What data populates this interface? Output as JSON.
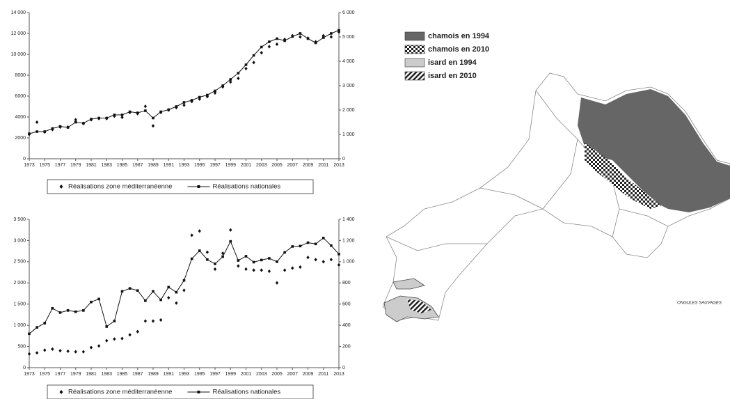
{
  "chart_data": [
    {
      "type": "dual-axis-line",
      "x": [
        1973,
        1974,
        1975,
        1976,
        1977,
        1978,
        1979,
        1980,
        1981,
        1982,
        1983,
        1984,
        1985,
        1986,
        1987,
        1988,
        1989,
        1990,
        1991,
        1992,
        1993,
        1994,
        1995,
        1996,
        1997,
        1998,
        1999,
        2000,
        2001,
        2002,
        2003,
        2004,
        2005,
        2006,
        2007,
        2008,
        2009,
        2010,
        2011,
        2012,
        2013
      ],
      "xlim": [
        1973,
        2013
      ],
      "xticks": [
        1973,
        1975,
        1977,
        1979,
        1981,
        1983,
        1985,
        1987,
        1989,
        1991,
        1993,
        1995,
        1997,
        1999,
        2001,
        2003,
        2005,
        2007,
        2009,
        2011,
        2013
      ],
      "ylim": [
        0,
        14000
      ],
      "yticks": [
        0,
        2000,
        4000,
        6000,
        8000,
        {
          "value": 10000,
          "label": "10 000"
        },
        {
          "value": 12000,
          "label": "12 000"
        },
        {
          "value": 14000,
          "label": "14 000"
        }
      ],
      "y2lim": [
        0,
        6000
      ],
      "y2ticks": [
        0,
        {
          "value": 1000,
          "label": "1 000"
        },
        {
          "value": 2000,
          "label": "2 000"
        },
        {
          "value": 3000,
          "label": "3 000"
        },
        {
          "value": 4000,
          "label": "4 000"
        },
        {
          "value": 5000,
          "label": "5 000"
        },
        {
          "value": 6000,
          "label": "6 000"
        }
      ],
      "series": [
        {
          "name": "Réalisations zone méditerranéenne",
          "color": "#111",
          "marker": "diamond",
          "line": false,
          "axis": "y2",
          "values": [
            1000,
            1500,
            1100,
            1200,
            1300,
            1300,
            1600,
            1450,
            1600,
            1650,
            1650,
            1750,
            1700,
            1900,
            1850,
            2150,
            1350,
            1900,
            2000,
            2100,
            2200,
            2350,
            2450,
            2550,
            2700,
            2950,
            3150,
            3300,
            3700,
            3950,
            4350,
            4600,
            4700,
            4900,
            5050,
            5000,
            4950,
            4800,
            5050,
            5000,
            5200
          ]
        },
        {
          "name": "Réalisations nationales",
          "color": "#111",
          "marker": "square",
          "line": true,
          "axis": "y",
          "values": [
            2400,
            2600,
            2600,
            2900,
            3100,
            3000,
            3500,
            3400,
            3800,
            3900,
            3900,
            4200,
            4200,
            4500,
            4400,
            4600,
            3900,
            4500,
            4700,
            5000,
            5400,
            5600,
            5900,
            6100,
            6500,
            7000,
            7600,
            8200,
            9000,
            9900,
            10700,
            11200,
            11500,
            11300,
            11700,
            12000,
            11500,
            11100,
            11600,
            12000,
            12300
          ]
        }
      ]
    },
    {
      "type": "dual-axis-line",
      "x": [
        1973,
        1974,
        1975,
        1976,
        1977,
        1978,
        1979,
        1980,
        1981,
        1982,
        1983,
        1984,
        1985,
        1986,
        1987,
        1988,
        1989,
        1990,
        1991,
        1992,
        1993,
        1994,
        1995,
        1996,
        1997,
        1998,
        1999,
        2000,
        2001,
        2002,
        2003,
        2004,
        2005,
        2006,
        2007,
        2008,
        2009,
        2010,
        2011,
        2012,
        2013
      ],
      "xlim": [
        1973,
        2013
      ],
      "xticks": [
        1973,
        1975,
        1977,
        1979,
        1981,
        1983,
        1985,
        1987,
        1989,
        1991,
        1993,
        1995,
        1997,
        1999,
        2001,
        2003,
        2005,
        2007,
        2009,
        2011,
        2013
      ],
      "ylim": [
        0,
        3500
      ],
      "yticks": [
        0,
        500,
        {
          "value": 1000,
          "label": "1 000"
        },
        {
          "value": 1500,
          "label": "1 500"
        },
        {
          "value": 2000,
          "label": "2 000"
        },
        {
          "value": 2500,
          "label": "2 500"
        },
        {
          "value": 3000,
          "label": "3 000"
        },
        {
          "value": 3500,
          "label": "3 500"
        }
      ],
      "y2lim": [
        0,
        1400
      ],
      "y2ticks": [
        0,
        200,
        400,
        600,
        800,
        {
          "value": 1000,
          "label": "1 000"
        },
        {
          "value": 1200,
          "label": "1 200"
        },
        {
          "value": 1400,
          "label": "1 400"
        }
      ],
      "series": [
        {
          "name": "Réalisations zone méditerranéenne",
          "color": "#111",
          "marker": "diamond",
          "line": false,
          "axis": "y2",
          "values": [
            130,
            140,
            165,
            175,
            160,
            155,
            150,
            150,
            190,
            205,
            255,
            270,
            275,
            310,
            340,
            440,
            440,
            450,
            660,
            610,
            730,
            1250,
            1290,
            1090,
            930,
            1080,
            1300,
            960,
            930,
            920,
            920,
            910,
            800,
            920,
            940,
            950,
            1040,
            1020,
            1000,
            1020,
            970
          ]
        },
        {
          "name": "Réalisations nationales",
          "color": "#111",
          "marker": "square",
          "line": true,
          "axis": "y",
          "values": [
            800,
            950,
            1050,
            1400,
            1300,
            1350,
            1320,
            1350,
            1550,
            1620,
            970,
            1100,
            1800,
            1870,
            1820,
            1580,
            1800,
            1600,
            1900,
            1780,
            2060,
            2570,
            2760,
            2550,
            2450,
            2620,
            2980,
            2530,
            2630,
            2490,
            2540,
            2580,
            2500,
            2720,
            2860,
            2870,
            2950,
            2920,
            3060,
            2880,
            2680
          ]
        }
      ]
    }
  ],
  "map": {
    "legend": [
      "chamois en 1994",
      "chamois en 2010",
      "isard en 1994",
      "isard en 2010"
    ],
    "logo": "ONGULES SAUVAGES"
  }
}
